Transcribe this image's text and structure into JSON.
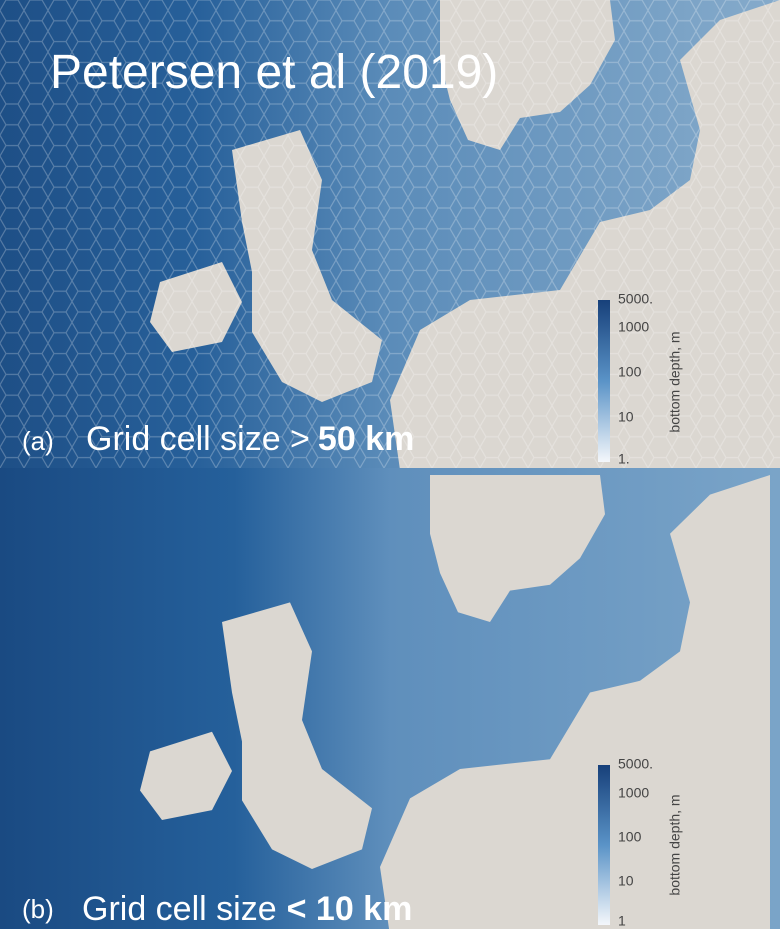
{
  "title": "Petersen et al (2019)",
  "panels": [
    {
      "label": "(a)",
      "caption": "Grid cell size >",
      "caption_bold": "50 km",
      "colorbar": {
        "ticks": [
          "5000.",
          "1000",
          "100",
          "10",
          "1."
        ],
        "label": "bottom depth, m"
      }
    },
    {
      "label": "(b)",
      "caption": "Grid cell size",
      "caption_bold": "< 10 km",
      "colorbar": {
        "ticks": [
          "5000.",
          "1000",
          "100",
          "10",
          "1"
        ],
        "label": "bottom depth, m"
      }
    }
  ]
}
